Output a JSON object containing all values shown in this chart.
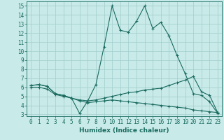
{
  "xlabel": "Humidex (Indice chaleur)",
  "bg_color": "#c8eae8",
  "line_color": "#1a6b60",
  "grid_color": "#a0ccca",
  "xlim": [
    -0.5,
    23.5
  ],
  "ylim": [
    2.8,
    15.5
  ],
  "xticks": [
    0,
    1,
    2,
    3,
    4,
    5,
    6,
    7,
    8,
    9,
    10,
    11,
    12,
    13,
    14,
    15,
    16,
    17,
    18,
    19,
    20,
    21,
    22,
    23
  ],
  "yticks": [
    3,
    4,
    5,
    6,
    7,
    8,
    9,
    10,
    11,
    12,
    13,
    14,
    15
  ],
  "series": [
    {
      "x": [
        0,
        1,
        2,
        3,
        4,
        5,
        6,
        7,
        8,
        9,
        10,
        11,
        12,
        13,
        14,
        15,
        16,
        17,
        18,
        19,
        20,
        21,
        22,
        23
      ],
      "y": [
        6.2,
        6.3,
        6.1,
        5.3,
        5.1,
        4.8,
        3.1,
        4.5,
        6.3,
        10.5,
        15.0,
        12.3,
        12.1,
        13.3,
        15.0,
        12.5,
        13.2,
        11.7,
        9.5,
        7.5,
        5.3,
        5.1,
        4.4,
        3.1
      ]
    },
    {
      "x": [
        0,
        1,
        2,
        3,
        4,
        5,
        6,
        7,
        8,
        9,
        10,
        11,
        12,
        13,
        14,
        15,
        16,
        17,
        18,
        19,
        20,
        21,
        22,
        23
      ],
      "y": [
        6.2,
        6.3,
        6.1,
        5.3,
        5.1,
        4.8,
        4.6,
        4.5,
        4.6,
        4.8,
        5.0,
        5.2,
        5.4,
        5.5,
        5.7,
        5.8,
        5.9,
        6.2,
        6.5,
        6.8,
        7.2,
        5.5,
        5.1,
        3.2
      ]
    },
    {
      "x": [
        0,
        1,
        2,
        3,
        4,
        5,
        6,
        7,
        8,
        9,
        10,
        11,
        12,
        13,
        14,
        15,
        16,
        17,
        18,
        19,
        20,
        21,
        22,
        23
      ],
      "y": [
        6.0,
        6.0,
        5.8,
        5.2,
        5.0,
        4.8,
        4.5,
        4.3,
        4.4,
        4.5,
        4.6,
        4.5,
        4.4,
        4.3,
        4.2,
        4.1,
        4.0,
        3.9,
        3.8,
        3.7,
        3.5,
        3.4,
        3.3,
        3.2
      ]
    }
  ]
}
